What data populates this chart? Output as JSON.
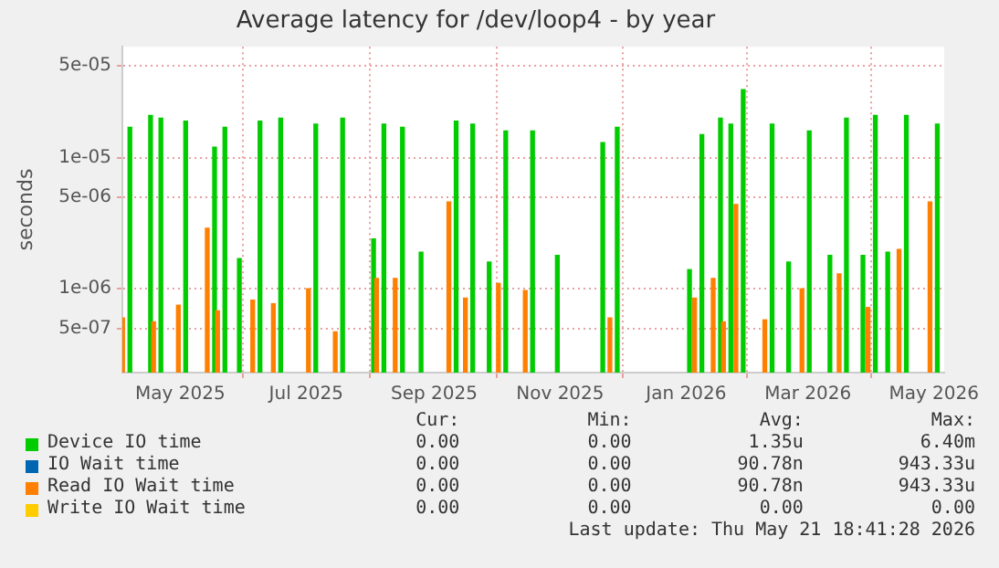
{
  "chart_data": {
    "type": "bar",
    "title": "Average latency for /dev/loop4 - by year",
    "ylabel": "seconds",
    "log": true,
    "grid": true,
    "legend": "bottom",
    "xlim": [
      "2025-04-17",
      "2026-05-20"
    ],
    "xticks": [
      {
        "value": "2025-05-15",
        "label": "May 2025"
      },
      {
        "value": "2025-07-15",
        "label": "Jul 2025"
      },
      {
        "value": "2025-09-15",
        "label": "Sep 2025"
      },
      {
        "value": "2025-11-15",
        "label": "Nov 2025"
      },
      {
        "value": "2026-01-15",
        "label": "Jan 2026"
      },
      {
        "value": "2026-03-15",
        "label": "Mar 2026"
      },
      {
        "value": "2026-05-15",
        "label": "May 2026"
      }
    ],
    "ylim": [
      2.3e-07,
      7e-05
    ],
    "yticks": [
      {
        "value": 5e-07,
        "label": "5e-07"
      },
      {
        "value": 1e-06,
        "label": "1e-06"
      },
      {
        "value": 5e-06,
        "label": "5e-06"
      },
      {
        "value": 1e-05,
        "label": "1e-05"
      },
      {
        "value": 5e-05,
        "label": "5e-05"
      }
    ],
    "x": [
      "2025-04-18",
      "2025-04-28",
      "2025-05-03",
      "2025-05-15",
      "2025-05-29",
      "2025-06-03",
      "2025-06-10",
      "2025-06-20",
      "2025-06-30",
      "2025-07-17",
      "2025-07-30",
      "2025-08-14",
      "2025-08-19",
      "2025-08-28",
      "2025-09-06",
      "2025-09-23",
      "2025-10-01",
      "2025-10-09",
      "2025-10-17",
      "2025-10-30",
      "2025-11-11",
      "2025-12-03",
      "2025-12-10",
      "2026-01-14",
      "2026-01-20",
      "2026-01-29",
      "2026-02-03",
      "2026-02-09",
      "2026-02-23",
      "2026-03-03",
      "2026-03-13",
      "2026-03-23",
      "2026-03-31",
      "2026-04-08",
      "2026-04-14",
      "2026-04-20",
      "2026-04-29",
      "2026-05-14"
    ],
    "series": [
      {
        "name": "Device IO time",
        "color": "#00cc00",
        "values": [
          1.7e-05,
          2.1e-05,
          2e-05,
          1.9e-05,
          1.2e-05,
          1.7e-05,
          1.7e-06,
          1.9e-05,
          2e-05,
          1.8e-05,
          2e-05,
          2.4e-06,
          1.8e-05,
          1.7e-05,
          1.9e-06,
          1.9e-05,
          1.8e-05,
          1.6e-06,
          1.6e-05,
          1.6e-05,
          1.8e-06,
          1.3e-05,
          1.7e-05,
          1.4e-06,
          1.5e-05,
          2e-05,
          1.8e-05,
          3.3e-05,
          1.8e-05,
          1.6e-06,
          1.6e-05,
          1.8e-06,
          2e-05,
          1.8e-06,
          2.1e-05,
          1.9e-06,
          2.1e-05,
          1.8e-05
        ]
      },
      {
        "name": "IO Wait time",
        "color": "#0066b3",
        "values": [
          null,
          null,
          null,
          null,
          null,
          null,
          null,
          null,
          null,
          null,
          null,
          null,
          null,
          null,
          null,
          null,
          null,
          null,
          null,
          null,
          null,
          null,
          null,
          null,
          null,
          null,
          null,
          null,
          null,
          null,
          null,
          null,
          null,
          null,
          null,
          null,
          null,
          null
        ]
      },
      {
        "name": "Read IO Wait time",
        "color": "#ff8000",
        "values": [
          6e-07,
          null,
          5.6e-07,
          7.5e-07,
          2.9e-06,
          6.8e-07,
          null,
          8.2e-07,
          7.7e-07,
          1e-06,
          4.7e-07,
          null,
          1.2e-06,
          1.2e-06,
          null,
          4.6e-06,
          8.5e-07,
          null,
          1.1e-06,
          9.7e-07,
          null,
          null,
          6e-07,
          null,
          8.5e-07,
          1.2e-06,
          5.6e-07,
          4.4e-06,
          5.8e-07,
          null,
          1e-06,
          null,
          1.3e-06,
          null,
          7.2e-07,
          null,
          2e-06,
          4.6e-06
        ]
      },
      {
        "name": "Write IO Wait time",
        "color": "#ffcc00",
        "values": [
          null,
          null,
          null,
          null,
          null,
          null,
          null,
          null,
          null,
          null,
          null,
          null,
          null,
          null,
          null,
          null,
          null,
          null,
          null,
          null,
          null,
          null,
          null,
          null,
          null,
          null,
          null,
          null,
          null,
          null,
          null,
          null,
          null,
          null,
          null,
          null,
          null,
          null
        ]
      }
    ],
    "annotations": [
      "Cur:",
      "Min:",
      "Avg:",
      "Max:",
      "0.00",
      "0.00",
      "1.35u",
      "6.40m",
      "0.00",
      "0.00",
      "90.78n",
      "943.33u",
      "0.00",
      "0.00",
      "90.78n",
      "943.33u",
      "0.00",
      "0.00",
      "0.00",
      "0.00",
      "Last update: Thu May 21 18:41:28 2026"
    ]
  }
}
